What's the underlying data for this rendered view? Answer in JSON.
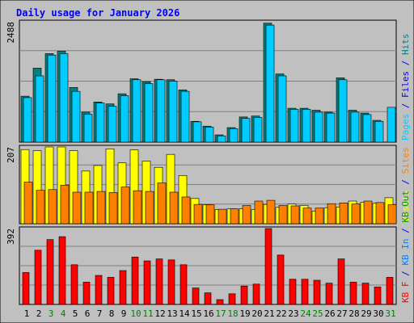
{
  "title": "Daily usage for January 2026",
  "colors": {
    "frame_bg": "#c0c0c0",
    "plot_bg": "#c0c0c0",
    "title": "#0000ff",
    "gridline": "#808080",
    "pages": "#00ccff",
    "files": "#008080",
    "hits": "#00a080",
    "visits": "#ffff00",
    "sites": "#ff8000",
    "kbin": "#0080ff",
    "kbout": "#00a000",
    "kbf": "#ff0000",
    "weekend": "#008000",
    "weekday": "#000000",
    "separator": "#0000ff"
  },
  "chart_data": [
    {
      "type": "bar",
      "panel": "hits",
      "ymax_label": "2488",
      "ylim": [
        0,
        2488
      ],
      "right_labels": [
        {
          "text": "Pages",
          "color": "#00ccff"
        },
        {
          "text": "Files",
          "color": "#0000ff"
        },
        {
          "text": "Hits",
          "color": "#008080"
        }
      ],
      "series": [
        {
          "name": "Hits",
          "color": "#008080",
          "values": [
            950,
            1530,
            1830,
            1880,
            1130,
            620,
            830,
            790,
            1000,
            1310,
            1250,
            1300,
            1290,
            1080,
            430,
            330,
            150,
            300,
            520,
            540,
            2460,
            1410,
            700,
            700,
            660,
            620,
            1330,
            660,
            600,
            450,
            0
          ]
        },
        {
          "name": "Pages",
          "color": "#00ccff",
          "values": [
            920,
            1370,
            1800,
            1830,
            1050,
            580,
            810,
            740,
            960,
            1290,
            1210,
            1290,
            1260,
            1050,
            420,
            310,
            130,
            280,
            490,
            510,
            2420,
            1370,
            680,
            680,
            620,
            600,
            1290,
            620,
            570,
            430,
            720
          ]
        }
      ]
    },
    {
      "type": "bar",
      "panel": "visits",
      "ymax_label": "207",
      "ylim": [
        0,
        207
      ],
      "right_labels": [
        {
          "text": "Visits",
          "color": "#ffff00"
        },
        {
          "text": "Sites",
          "color": "#ff8000"
        }
      ],
      "series": [
        {
          "name": "Visits",
          "color": "#ffff00",
          "values": [
            200,
            197,
            207,
            207,
            197,
            142,
            157,
            202,
            164,
            199,
            169,
            152,
            187,
            130,
            68,
            51,
            38,
            40,
            40,
            38,
            52,
            44,
            53,
            49,
            34,
            43,
            45,
            61,
            58,
            55,
            70
          ]
        },
        {
          "name": "Sites",
          "color": "#ff8000",
          "values": [
            112,
            90,
            92,
            104,
            85,
            85,
            87,
            84,
            99,
            89,
            87,
            110,
            85,
            72,
            52,
            51,
            39,
            40,
            49,
            61,
            63,
            49,
            48,
            42,
            42,
            54,
            56,
            53,
            61,
            57,
            51
          ]
        }
      ]
    },
    {
      "type": "bar",
      "panel": "kbytes",
      "ymax_label": "392",
      "ylim": [
        0,
        392
      ],
      "right_labels": [
        {
          "text": "KB F",
          "color": "#ff0000"
        },
        {
          "text": "KB In",
          "color": "#0080ff"
        },
        {
          "text": "KB Out",
          "color": "#00a000"
        }
      ],
      "series": [
        {
          "name": "KB F",
          "color": "#ff0000",
          "values": [
            165,
            280,
            335,
            350,
            205,
            115,
            150,
            140,
            175,
            245,
            225,
            235,
            230,
            205,
            85,
            60,
            25,
            55,
            95,
            105,
            392,
            255,
            130,
            130,
            125,
            110,
            235,
            115,
            110,
            90,
            140
          ]
        }
      ]
    }
  ],
  "days": [
    {
      "label": "1",
      "weekend": false
    },
    {
      "label": "2",
      "weekend": false
    },
    {
      "label": "3",
      "weekend": true
    },
    {
      "label": "4",
      "weekend": true
    },
    {
      "label": "5",
      "weekend": false
    },
    {
      "label": "6",
      "weekend": false
    },
    {
      "label": "7",
      "weekend": false
    },
    {
      "label": "8",
      "weekend": false
    },
    {
      "label": "9",
      "weekend": false
    },
    {
      "label": "10",
      "weekend": true
    },
    {
      "label": "11",
      "weekend": true
    },
    {
      "label": "12",
      "weekend": false
    },
    {
      "label": "13",
      "weekend": false
    },
    {
      "label": "14",
      "weekend": false
    },
    {
      "label": "15",
      "weekend": false
    },
    {
      "label": "16",
      "weekend": false
    },
    {
      "label": "17",
      "weekend": true
    },
    {
      "label": "18",
      "weekend": true
    },
    {
      "label": "19",
      "weekend": false
    },
    {
      "label": "20",
      "weekend": false
    },
    {
      "label": "21",
      "weekend": false
    },
    {
      "label": "22",
      "weekend": false
    },
    {
      "label": "23",
      "weekend": false
    },
    {
      "label": "24",
      "weekend": true
    },
    {
      "label": "25",
      "weekend": true
    },
    {
      "label": "26",
      "weekend": false
    },
    {
      "label": "27",
      "weekend": false
    },
    {
      "label": "28",
      "weekend": false
    },
    {
      "label": "29",
      "weekend": false
    },
    {
      "label": "30",
      "weekend": false
    },
    {
      "label": "31",
      "weekend": true
    }
  ]
}
